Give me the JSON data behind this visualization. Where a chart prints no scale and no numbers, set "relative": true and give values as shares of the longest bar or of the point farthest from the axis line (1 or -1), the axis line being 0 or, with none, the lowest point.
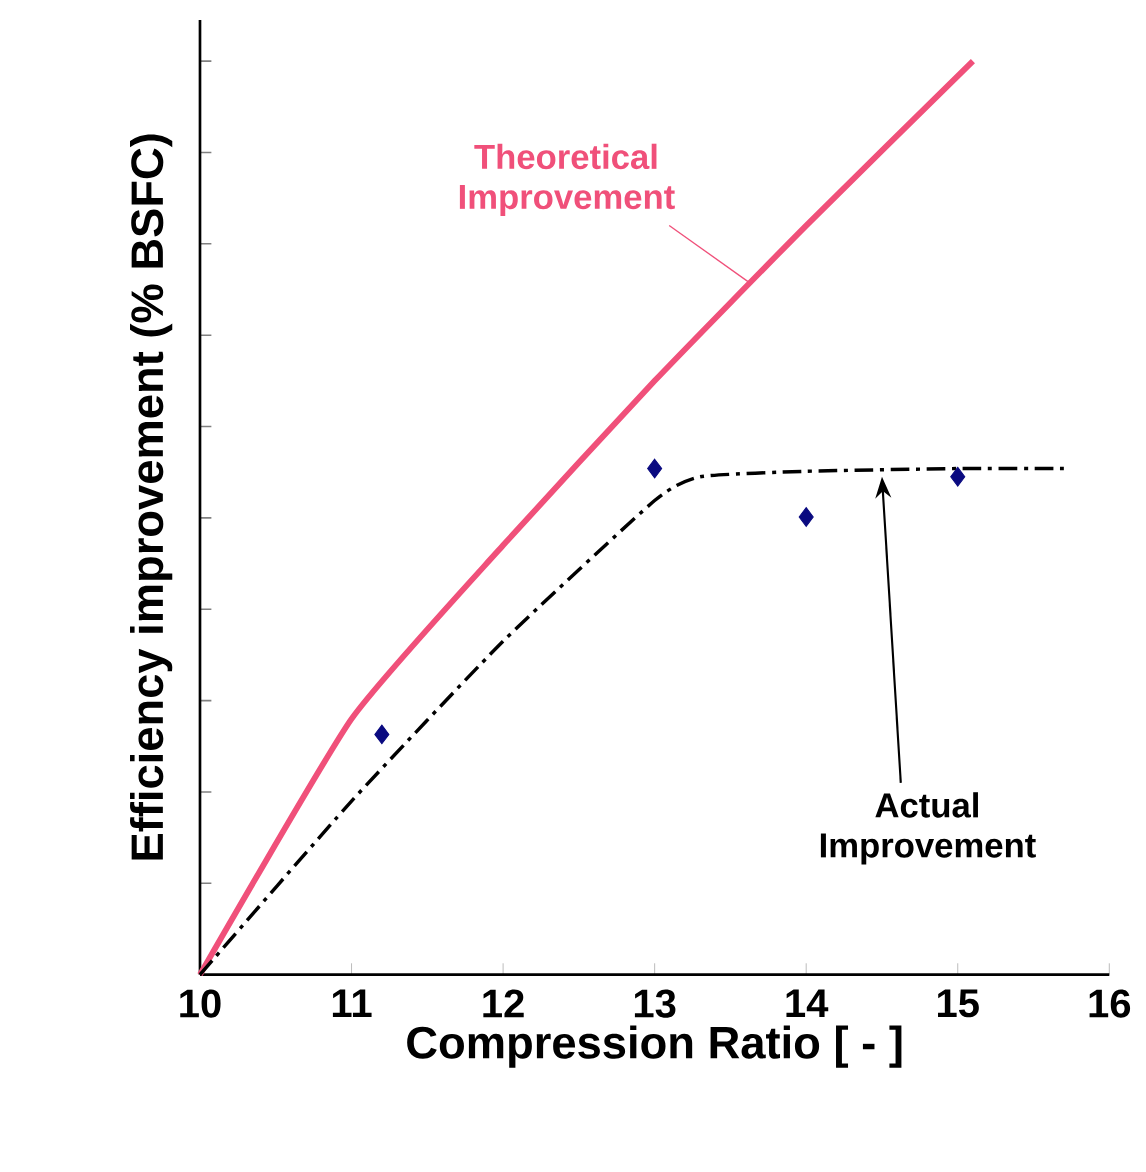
{
  "chart_data": {
    "type": "line",
    "relative": true,
    "xlabel": "Compression Ratio [ - ]",
    "ylabel": "Efficiency improvement (% BSFC)",
    "xlim": [
      10,
      16
    ],
    "xticks": [
      10,
      11,
      12,
      13,
      14,
      15,
      16
    ],
    "grid": false,
    "series": [
      {
        "name": "Theoretical Improvement",
        "color": "#f0507a",
        "line_style": "solid",
        "marker": "none",
        "x": [
          10,
          11,
          12,
          13,
          14,
          15.1
        ],
        "values": [
          0,
          0.28,
          0.47,
          0.65,
          0.82,
          1
        ]
      },
      {
        "name": "Actual Improvement",
        "color": "#000000",
        "line_style": "dashed",
        "marker": "none",
        "x": [
          10,
          11,
          12,
          13,
          13.3,
          14,
          15,
          15.7
        ],
        "values": [
          0,
          0.19,
          0.365,
          0.519,
          0.545,
          0.551,
          0.554,
          0.554
        ]
      },
      {
        "type": "scatter",
        "color": "#0a0a80",
        "marker": "diamond",
        "x": [
          11.2,
          13,
          14,
          15
        ],
        "values": [
          0.263,
          0.554,
          0.501,
          0.545
        ]
      }
    ]
  }
}
